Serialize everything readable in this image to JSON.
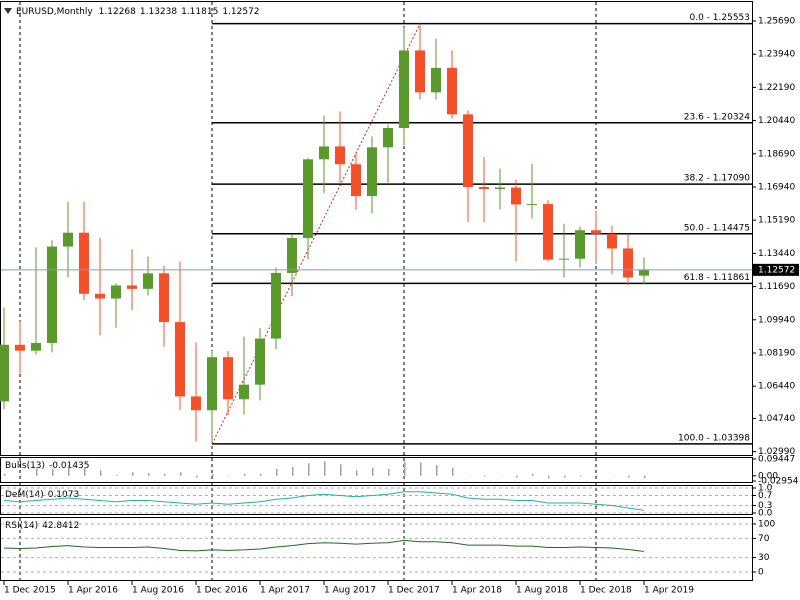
{
  "chart_data": [
    {
      "type": "candlestick",
      "title": "EURUSD,Monthly",
      "categories": [
        "1 Dec 2015",
        null,
        null,
        null,
        "1 Apr 2016",
        null,
        null,
        null,
        "1 Aug 2016",
        null,
        null,
        null,
        "1 Dec 2016",
        null,
        null,
        null,
        "1 Apr 2017",
        null,
        null,
        null,
        "1 Aug 2017",
        null,
        null,
        null,
        "1 Dec 2017",
        null,
        null,
        null,
        "1 Apr 2018",
        null,
        null,
        null,
        "1 Aug 2018",
        null,
        null,
        null,
        "1 Dec 2018",
        null,
        null,
        null,
        "1 Apr 2019"
      ],
      "open": [
        1.0564,
        1.0862,
        1.0831,
        1.0872,
        1.138,
        1.1453,
        1.1131,
        1.1106,
        1.1175,
        1.1157,
        1.1239,
        1.0982,
        1.059,
        1.0517,
        1.0797,
        1.0575,
        1.0652,
        1.0895,
        1.1241,
        1.1425,
        1.184,
        1.1908,
        1.1814,
        1.1646,
        1.1903,
        1.2005,
        1.2414,
        1.2193,
        1.2322,
        1.2077,
        1.1694,
        1.1683,
        1.1691,
        1.1602,
        1.1604,
        1.1311,
        1.1316,
        1.1466,
        1.1447,
        1.137,
        1.12268
      ],
      "high": [
        1.1059,
        1.0986,
        1.1376,
        1.1413,
        1.1616,
        1.1616,
        1.1427,
        1.1185,
        1.1366,
        1.1327,
        1.1278,
        1.13,
        1.0874,
        1.083,
        1.0829,
        1.0906,
        1.0951,
        1.1268,
        1.1445,
        1.1846,
        1.207,
        1.2092,
        1.188,
        1.1961,
        1.2023,
        1.2536,
        1.2555,
        1.2476,
        1.2414,
        1.2097,
        1.1852,
        1.1791,
        1.1733,
        1.1815,
        1.1625,
        1.15,
        1.1486,
        1.157,
        1.1489,
        1.1448,
        1.13238
      ],
      "low": [
        1.0523,
        1.0711,
        1.081,
        1.0822,
        1.1217,
        1.1098,
        1.0912,
        1.0952,
        1.1045,
        1.1122,
        1.0852,
        1.0518,
        1.0352,
        1.03398,
        1.0494,
        1.0494,
        1.0569,
        1.0839,
        1.1118,
        1.1312,
        1.1662,
        1.1717,
        1.1574,
        1.1554,
        1.1717,
        1.1915,
        1.2155,
        1.2155,
        1.2055,
        1.151,
        1.1508,
        1.1576,
        1.1301,
        1.1527,
        1.1302,
        1.1216,
        1.1269,
        1.1289,
        1.1234,
        1.1176,
        1.11815
      ],
      "close": [
        1.0862,
        1.0831,
        1.0872,
        1.138,
        1.1453,
        1.1131,
        1.1106,
        1.1175,
        1.1157,
        1.1239,
        1.0982,
        1.059,
        1.0517,
        1.0797,
        1.0575,
        1.0652,
        1.0895,
        1.1241,
        1.1425,
        1.184,
        1.1908,
        1.1814,
        1.1646,
        1.1903,
        1.2005,
        1.2414,
        1.2193,
        1.2322,
        1.2077,
        1.1694,
        1.1683,
        1.1691,
        1.1602,
        1.1604,
        1.1311,
        1.1316,
        1.1466,
        1.1447,
        1.137,
        1.1217,
        1.12572
      ],
      "up_color": "#5a9a2c",
      "down_color": "#f4502a",
      "ylim": [
        1.02812,
        1.26692
      ],
      "yticks": [
        {
          "value": 1.2569,
          "label": "1.25690"
        },
        {
          "value": 1.2394,
          "label": "1.23940"
        },
        {
          "value": 1.2219,
          "label": "1.22190"
        },
        {
          "value": 1.2044,
          "label": "1.20440"
        },
        {
          "value": 1.1869,
          "label": "1.18690"
        },
        {
          "value": 1.1694,
          "label": "1.16940"
        },
        {
          "value": 1.1519,
          "label": "1.15190"
        },
        {
          "value": 1.1344,
          "label": "1.13440"
        },
        {
          "value": 1.1169,
          "label": "1.11690"
        },
        {
          "value": 1.0994,
          "label": "1.09940"
        },
        {
          "value": 1.0819,
          "label": "1.08190"
        },
        {
          "value": 1.0644,
          "label": "1.06440"
        },
        {
          "value": 1.0474,
          "label": "1.04740"
        },
        {
          "value": 1.0299,
          "label": "1.02990"
        }
      ],
      "fibo_levels": [
        {
          "value": 1.25553,
          "label": "0.0 - 1.25553"
        },
        {
          "value": 1.20324,
          "label": "23.6 - 1.20324"
        },
        {
          "value": 1.1709,
          "label": "38.2 - 1.17090"
        },
        {
          "value": 1.14475,
          "label": "50.0 - 1.14475"
        },
        {
          "value": 1.11861,
          "label": "61.8 - 1.11861"
        },
        {
          "value": 1.03398,
          "label": "100.0 - 1.03398"
        }
      ]
    },
    {
      "type": "bar",
      "title": "Bulls(13)",
      "color": "#a0a0a0",
      "values": [
        0.01,
        0.005,
        0.04,
        0.04,
        0.06,
        0.05,
        0.03,
        0.005,
        0.02,
        0.015,
        0.01,
        0.02,
        -0.01,
        0.01,
        -0.003,
        0.01,
        0.01,
        0.04,
        0.05,
        0.07,
        0.08,
        0.065,
        0.03,
        0.045,
        0.04,
        0.08,
        0.075,
        0.06,
        0.045,
        0,
        -0.005,
        0,
        -0.01,
        0.01,
        -0.015,
        -0.01,
        -0.005,
        0.005,
        -0.002,
        -0.01,
        -0.01435
      ],
      "ylim": [
        -0.02954,
        0.09447
      ],
      "yticks": [
        0.09447,
        {
          "value": 0,
          "label": "0.00"
        },
        -0.02954
      ]
    },
    {
      "type": "line",
      "title": "DeM(14)",
      "color": "#20b2aa",
      "values": [
        0.5,
        0.45,
        0.5,
        0.55,
        0.6,
        0.55,
        0.5,
        0.45,
        0.5,
        0.5,
        0.45,
        0.4,
        0.35,
        0.4,
        0.35,
        0.4,
        0.45,
        0.55,
        0.6,
        0.7,
        0.75,
        0.7,
        0.65,
        0.7,
        0.75,
        0.85,
        0.85,
        0.8,
        0.75,
        0.6,
        0.55,
        0.55,
        0.5,
        0.5,
        0.4,
        0.4,
        0.4,
        0.35,
        0.3,
        0.2,
        0.1073
      ],
      "ylim": [
        0,
        1
      ],
      "yticks": [
        {
          "value": 1,
          "label": "1.0"
        },
        0.7,
        0.3,
        {
          "value": 0,
          "label": "0.0"
        }
      ]
    },
    {
      "type": "line",
      "title": "RSI(14)",
      "color": "#1e6b1e",
      "values": [
        50,
        49,
        50,
        53,
        55,
        52,
        51,
        51,
        51,
        52,
        49,
        45,
        44,
        46,
        45,
        46,
        48,
        52,
        55,
        59,
        61,
        60,
        58,
        60,
        61,
        66,
        63,
        63,
        61,
        56,
        56,
        56,
        54,
        54,
        51,
        51,
        52,
        51,
        50,
        47,
        42.8412
      ],
      "ylim": [
        0,
        100
      ],
      "yticks": [
        100,
        70,
        30,
        0
      ]
    }
  ]
}
